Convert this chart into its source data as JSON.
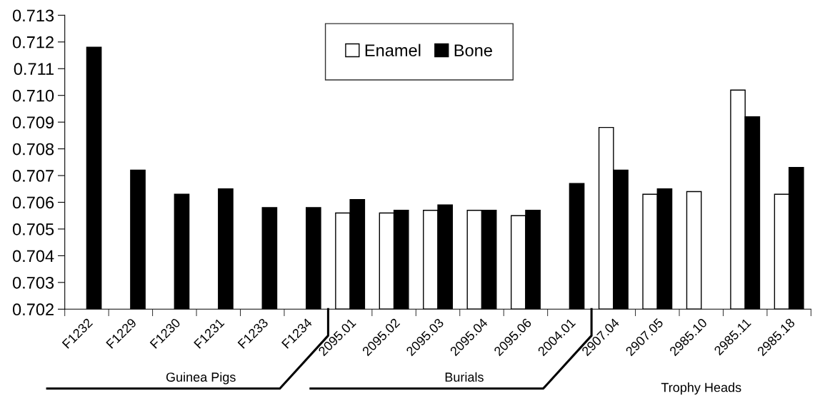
{
  "chart_data": {
    "type": "bar",
    "categories": [
      "F1232",
      "F1229",
      "F1230",
      "F1231",
      "F1233",
      "F1234",
      "2095.01",
      "2095.02",
      "2095.03",
      "2095.04",
      "2095.06",
      "2004.01",
      "2907.04",
      "2907.05",
      "2985.10",
      "2985.11",
      "2985.18"
    ],
    "series": [
      {
        "name": "Enamel",
        "color": "#ffffff",
        "values": [
          null,
          null,
          null,
          null,
          null,
          null,
          0.7056,
          0.7056,
          0.7057,
          0.7057,
          0.7055,
          null,
          0.7088,
          0.7063,
          0.7064,
          0.7102,
          0.7063
        ]
      },
      {
        "name": "Bone",
        "color": "#000000",
        "values": [
          0.7118,
          0.7072,
          0.7063,
          0.7065,
          0.7058,
          0.7058,
          0.7061,
          0.7057,
          0.7059,
          0.7057,
          0.7057,
          0.7067,
          0.7072,
          0.7065,
          null,
          0.7092,
          0.7073
        ]
      }
    ],
    "ylim": [
      0.702,
      0.713
    ],
    "yticks": [
      0.702,
      0.703,
      0.704,
      0.705,
      0.706,
      0.707,
      0.708,
      0.709,
      {
        "value": 0.71,
        "label": "0.710"
      },
      0.711,
      0.712,
      0.713
    ],
    "annotations": [
      "Guinea Pigs",
      "Burials",
      "Trophy Heads"
    ],
    "legend": "top",
    "grid": false
  }
}
